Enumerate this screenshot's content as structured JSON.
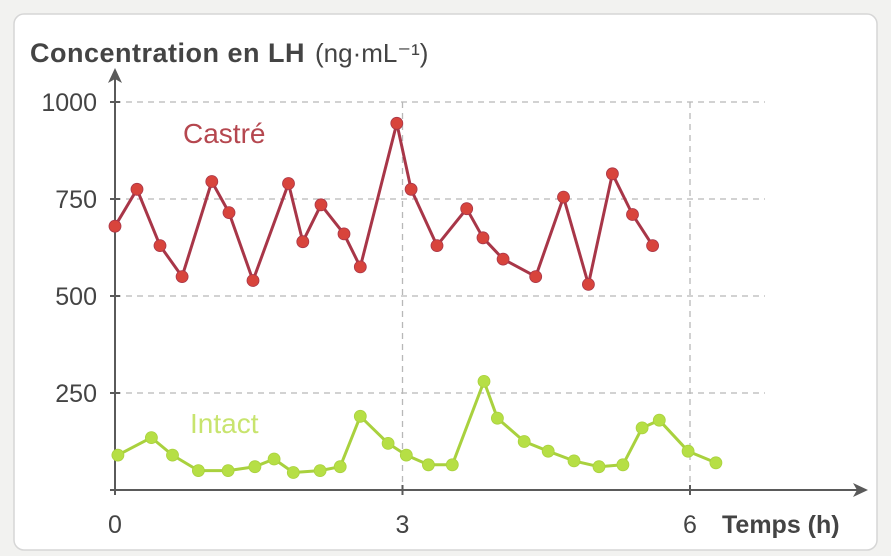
{
  "chart_data": {
    "type": "line",
    "ylabel": "Concentration en LH",
    "yunit": "(ng·mL⁻¹)",
    "xlabel": "Temps (h)",
    "xlim": [
      0,
      6
    ],
    "ylim": [
      0,
      1000
    ],
    "xticks": [
      0,
      3,
      6
    ],
    "yticks": [
      250,
      500,
      750,
      1000
    ],
    "grid": true,
    "series": [
      {
        "name": "Castré",
        "color": "#d8443c",
        "line_color": "#a83648",
        "x": [
          0,
          0.23,
          0.47,
          0.7,
          1.01,
          1.19,
          1.44,
          1.81,
          1.96,
          2.15,
          2.39,
          2.56,
          2.94,
          3.09,
          3.36,
          3.67,
          3.84,
          4.05,
          4.39,
          4.68,
          4.94,
          5.19,
          5.4,
          5.61
        ],
        "y": [
          680,
          775,
          630,
          550,
          795,
          715,
          540,
          790,
          640,
          735,
          660,
          575,
          945,
          775,
          630,
          725,
          650,
          595,
          550,
          755,
          530,
          815,
          710,
          630
        ]
      },
      {
        "name": "Intact",
        "color": "#b6df45",
        "line_color": "#a9d13e",
        "x": [
          0.03,
          0.38,
          0.6,
          0.87,
          1.18,
          1.46,
          1.66,
          1.86,
          2.14,
          2.35,
          2.56,
          2.85,
          3.04,
          3.27,
          3.52,
          3.85,
          3.99,
          4.27,
          4.52,
          4.79,
          5.05,
          5.3,
          5.5,
          5.68,
          5.98,
          6.27
        ],
        "y": [
          90,
          135,
          90,
          50,
          50,
          60,
          80,
          45,
          50,
          60,
          190,
          120,
          90,
          65,
          65,
          280,
          185,
          125,
          100,
          75,
          60,
          65,
          160,
          180,
          100,
          70
        ]
      }
    ]
  }
}
